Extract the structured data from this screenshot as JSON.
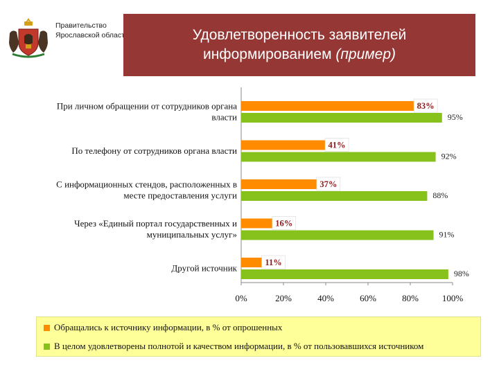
{
  "header": {
    "org_line1": "Правительство",
    "org_line2": "Ярославской области",
    "title_line1": "Удовлетворенность заявителей",
    "title_line2_plain": "информированием ",
    "title_line2_italic": "(пример)"
  },
  "colors": {
    "banner": "#953735",
    "series_contacted": "#ff8c00",
    "series_satisfied": "#86c21b",
    "legend_bg": "#ffff99"
  },
  "chart_data": {
    "type": "bar",
    "orientation": "horizontal",
    "categories": [
      [
        "При личном обращении от сотрудников органа",
        "власти"
      ],
      [
        "По телефону от сотрудников органа власти"
      ],
      [
        "С информационных стендов, расположенных в",
        "месте предоставления услуги"
      ],
      [
        "Через «Единый портал государственных и",
        "муниципальных услуг»"
      ],
      [
        "Другой источник"
      ]
    ],
    "series": [
      {
        "name": "Обращались к источнику информации, в % от опрошенных",
        "values": [
          83,
          41,
          37,
          16,
          11
        ],
        "labels": [
          "83%",
          "41%",
          "37%",
          "16%",
          "11%"
        ]
      },
      {
        "name": "В целом удовлетворены полнотой и качеством информации, в % от пользовавшихся источником",
        "values": [
          95,
          92,
          88,
          91,
          98
        ],
        "labels": [
          "95%",
          "92%",
          "88%",
          "91%",
          "98%"
        ]
      }
    ],
    "xlim": [
      0,
      100
    ],
    "xticks": [
      0,
      20,
      40,
      60,
      80,
      100
    ],
    "xtick_labels": [
      "0%",
      "20%",
      "40%",
      "60%",
      "80%",
      "100%"
    ],
    "grid": false,
    "legend_position": "bottom"
  }
}
